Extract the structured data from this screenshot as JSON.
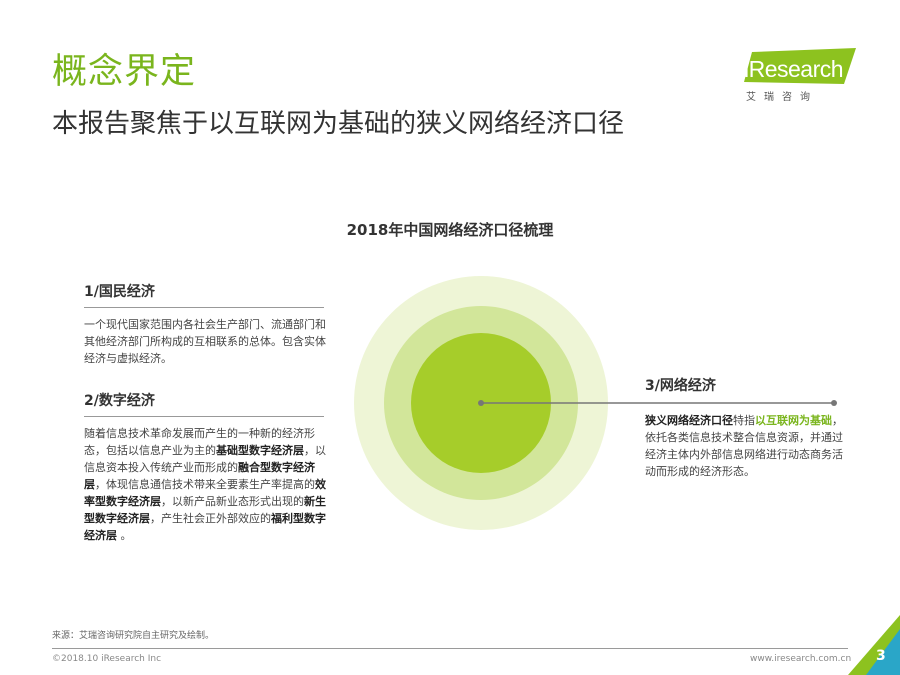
{
  "header": {
    "title": "概念界定",
    "subtitle": "本报告聚焦于以互联网为基础的狭义网络经济口径"
  },
  "logo": {
    "brand": "iResearch",
    "chinese": "艾瑞咨询"
  },
  "chart": {
    "title": "2018年中国网络经济口径梳理"
  },
  "left": {
    "s1": {
      "title": "1/国民经济",
      "body": "一个现代国家范围内各社会生产部门、流通部门和其他经济部门所构成的互相联系的总体。包含实体经济与虚拟经济。"
    },
    "s2": {
      "title": "2/数字经济",
      "p1": "随着信息技术革命发展而产生的一种新的经济形态，包括以信息产业为主的",
      "b1": "基础型数字经济层",
      "p2": "，以信息资本投入传统产业而形成的",
      "b2": "融合型数字经济层",
      "p3": "，体现信息通信技术带来全要素生产率提高的",
      "b3": "效率型数字经济层",
      "p4": "，以新产品新业态形式出现的",
      "b4": "新生型数字经济层",
      "p5": "，产生社会正外部效应的",
      "b5": "福利型数字经济层",
      "p6": " 。"
    }
  },
  "right": {
    "title": "3/网络经济",
    "lead": "狭义网络经济口径",
    "t1": "特指",
    "hl": "以互联网为基础",
    "t2": "，依托各类信息技术整合信息资源，并通过经济主体内外部信息网络进行动态商务活动而形成的经济形态。"
  },
  "footer": {
    "source": "来源：艾瑞咨询研究院自主研究及绘制。",
    "copyright": "©2018.10 iResearch Inc",
    "website": "www.iresearch.com.cn",
    "page": "3"
  },
  "colors": {
    "accent": "#7ab51d",
    "circle_outer": "#eef5d6",
    "circle_middle": "#d2e69a",
    "circle_inner": "#a6cd2a"
  }
}
